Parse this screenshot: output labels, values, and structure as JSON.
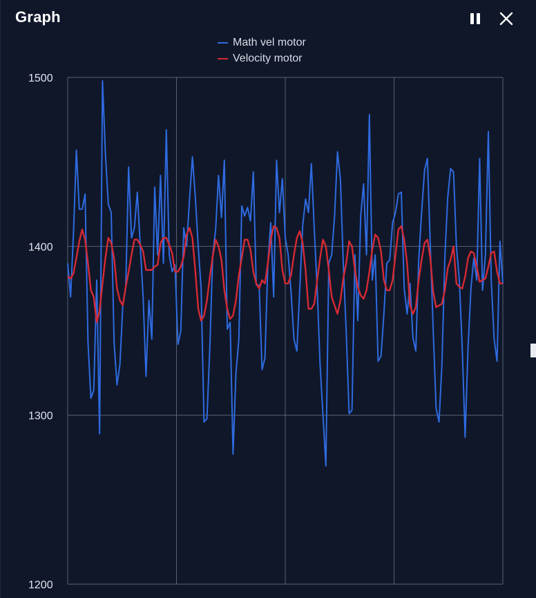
{
  "header": {
    "title": "Graph",
    "pause_icon": "pause-icon",
    "close_icon": "close-icon"
  },
  "colors": {
    "background": "#0f1729",
    "grid": "#6b7689",
    "math_vel_motor": "#2f6be0",
    "velocity_motor": "#d62a34"
  },
  "chart_data": {
    "type": "line",
    "title": "",
    "xlabel": "",
    "ylabel": "",
    "ylim": [
      1200,
      1500
    ],
    "yticks": [
      1200,
      1300,
      1400,
      1500
    ],
    "x_gridlines": 4,
    "grid": true,
    "legend_position": "top-center",
    "series": [
      {
        "name": "Math vel motor",
        "color": "#2f6be0",
        "values": [
          1390,
          1370,
          1408,
          1457,
          1422,
          1422,
          1431,
          1343,
          1310,
          1315,
          1380,
          1289,
          1498,
          1455,
          1425,
          1420,
          1343,
          1318,
          1330,
          1365,
          1375,
          1447,
          1405,
          1411,
          1432,
          1401,
          1370,
          1323,
          1368,
          1345,
          1435,
          1395,
          1442,
          1390,
          1469,
          1395,
          1385,
          1389,
          1342,
          1350,
          1411,
          1400,
          1428,
          1453,
          1429,
          1400,
          1375,
          1296,
          1298,
          1340,
          1395,
          1410,
          1442,
          1417,
          1451,
          1351,
          1355,
          1277,
          1325,
          1345,
          1424,
          1418,
          1423,
          1415,
          1444,
          1377,
          1377,
          1327,
          1334,
          1390,
          1414,
          1370,
          1451,
          1420,
          1440,
          1405,
          1395,
          1373,
          1345,
          1338,
          1375,
          1412,
          1428,
          1420,
          1449,
          1410,
          1375,
          1330,
          1300,
          1270,
          1390,
          1395,
          1418,
          1456,
          1440,
          1390,
          1350,
          1301,
          1303,
          1395,
          1356,
          1418,
          1437,
          1395,
          1478,
          1380,
          1395,
          1332,
          1335,
          1360,
          1390,
          1392,
          1414,
          1420,
          1431,
          1432,
          1375,
          1360,
          1378,
          1346,
          1338,
          1392,
          1420,
          1445,
          1452,
          1400,
          1350,
          1304,
          1296,
          1330,
          1393,
          1429,
          1446,
          1444,
          1400,
          1380,
          1340,
          1287,
          1340,
          1375,
          1393,
          1380,
          1452,
          1374,
          1395,
          1468,
          1380,
          1345,
          1332,
          1403,
          1378
        ]
      },
      {
        "name": "Velocity motor",
        "color": "#d62a34",
        "values": [
          1382,
          1381,
          1384,
          1393,
          1403,
          1410,
          1404,
          1390,
          1374,
          1370,
          1355,
          1362,
          1378,
          1393,
          1405,
          1402,
          1393,
          1375,
          1368,
          1365,
          1376,
          1385,
          1395,
          1404,
          1404,
          1401,
          1397,
          1386,
          1386,
          1386,
          1388,
          1389,
          1402,
          1405,
          1405,
          1401,
          1396,
          1385,
          1385,
          1388,
          1394,
          1407,
          1411,
          1405,
          1385,
          1363,
          1356,
          1359,
          1368,
          1382,
          1394,
          1404,
          1400,
          1392,
          1374,
          1363,
          1357,
          1359,
          1368,
          1383,
          1393,
          1404,
          1404,
          1398,
          1385,
          1378,
          1375,
          1380,
          1378,
          1390,
          1404,
          1412,
          1411,
          1405,
          1386,
          1378,
          1378,
          1383,
          1395,
          1405,
          1409,
          1402,
          1386,
          1363,
          1363,
          1366,
          1380,
          1393,
          1404,
          1400,
          1386,
          1370,
          1365,
          1360,
          1368,
          1381,
          1390,
          1403,
          1400,
          1386,
          1376,
          1371,
          1369,
          1374,
          1385,
          1398,
          1407,
          1405,
          1397,
          1380,
          1374,
          1374,
          1380,
          1395,
          1410,
          1412,
          1404,
          1390,
          1365,
          1360,
          1364,
          1380,
          1392,
          1402,
          1404,
          1393,
          1373,
          1364,
          1365,
          1366,
          1374,
          1387,
          1392,
          1400,
          1378,
          1376,
          1375,
          1382,
          1393,
          1397,
          1396,
          1388,
          1379,
          1380,
          1381,
          1388,
          1396,
          1397,
          1385,
          1378,
          1378
        ]
      }
    ]
  }
}
